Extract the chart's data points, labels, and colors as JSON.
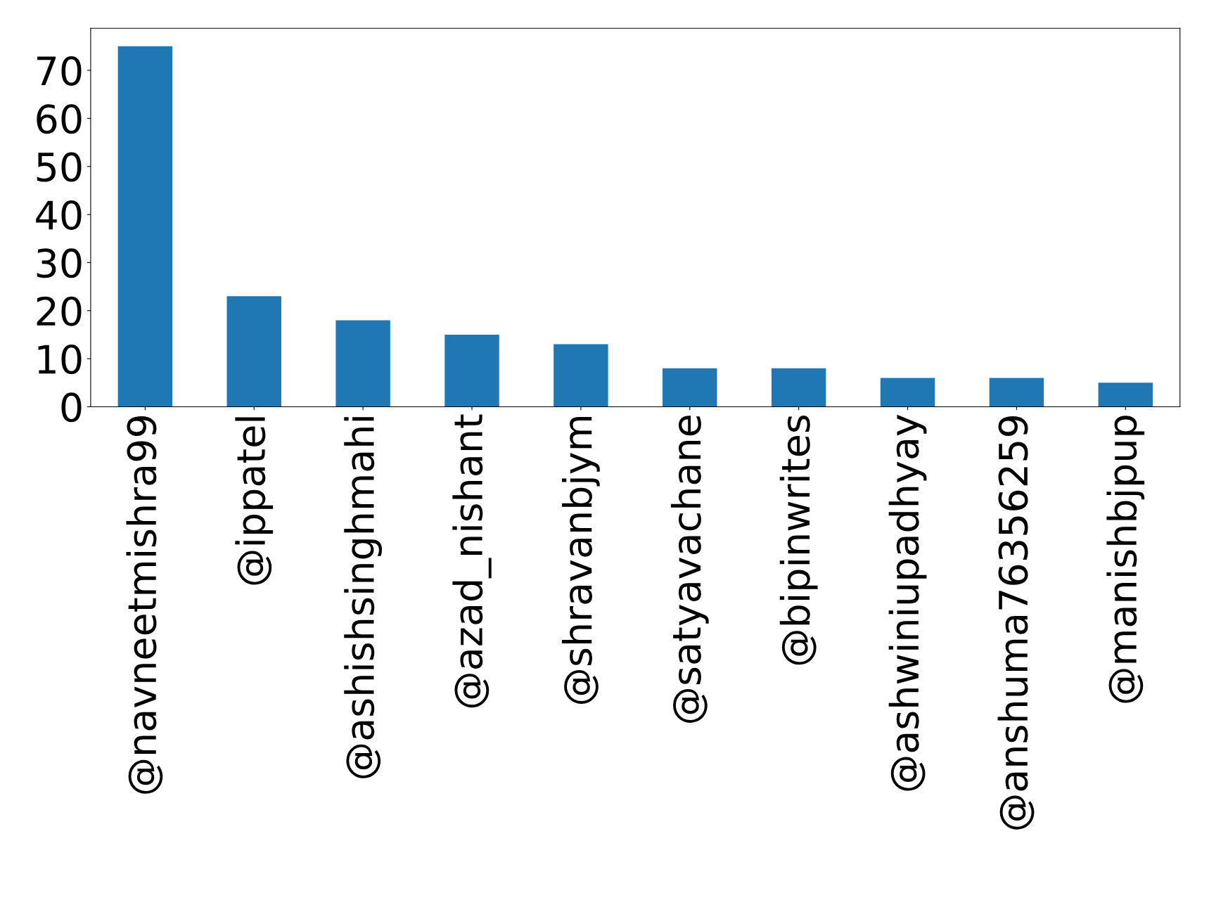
{
  "chart_data": {
    "type": "bar",
    "categories": [
      "@navneetmishra99",
      "@ippatel",
      "@ashishsinghmahi",
      "@azad_nishant",
      "@shravanbjym",
      "@satyavachane",
      "@bipinwrites",
      "@ashwiniupadhyay",
      "@anshuma76356259",
      "@manishbjpup"
    ],
    "values": [
      75,
      23,
      18,
      15,
      13,
      8,
      8,
      6,
      6,
      5
    ],
    "color": "#1f77b4",
    "ylim": [
      0,
      78.75
    ],
    "yticks": [
      0,
      10,
      20,
      30,
      40,
      50,
      60,
      70
    ],
    "grid": false,
    "legend": false
  }
}
